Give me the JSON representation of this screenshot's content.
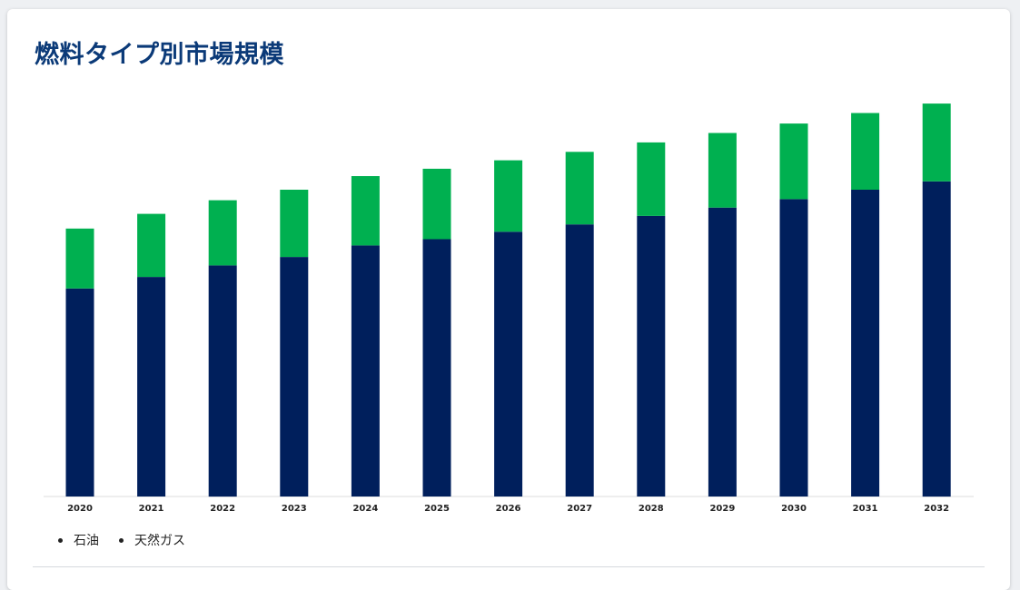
{
  "title": "燃料タイプ別市場規模",
  "chart_data": {
    "type": "bar",
    "stacked": true,
    "categories": [
      "2020",
      "2021",
      "2022",
      "2023",
      "2024",
      "2025",
      "2026",
      "2027",
      "2028",
      "2029",
      "2030",
      "2031",
      "2032"
    ],
    "series": [
      {
        "name": "石油",
        "color": "#001f5c",
        "values": [
          198,
          209,
          220,
          228,
          239,
          245,
          252,
          259,
          267,
          275,
          283,
          292,
          300
        ]
      },
      {
        "name": "天然ガス",
        "color": "#00b050",
        "values": [
          57,
          60,
          62,
          64,
          66,
          67,
          68,
          69,
          70,
          71,
          72,
          73,
          74
        ]
      }
    ],
    "ylim": [
      0,
      400
    ],
    "y_axis_visible": false,
    "grid": false,
    "legend_position": "bottom-left"
  }
}
